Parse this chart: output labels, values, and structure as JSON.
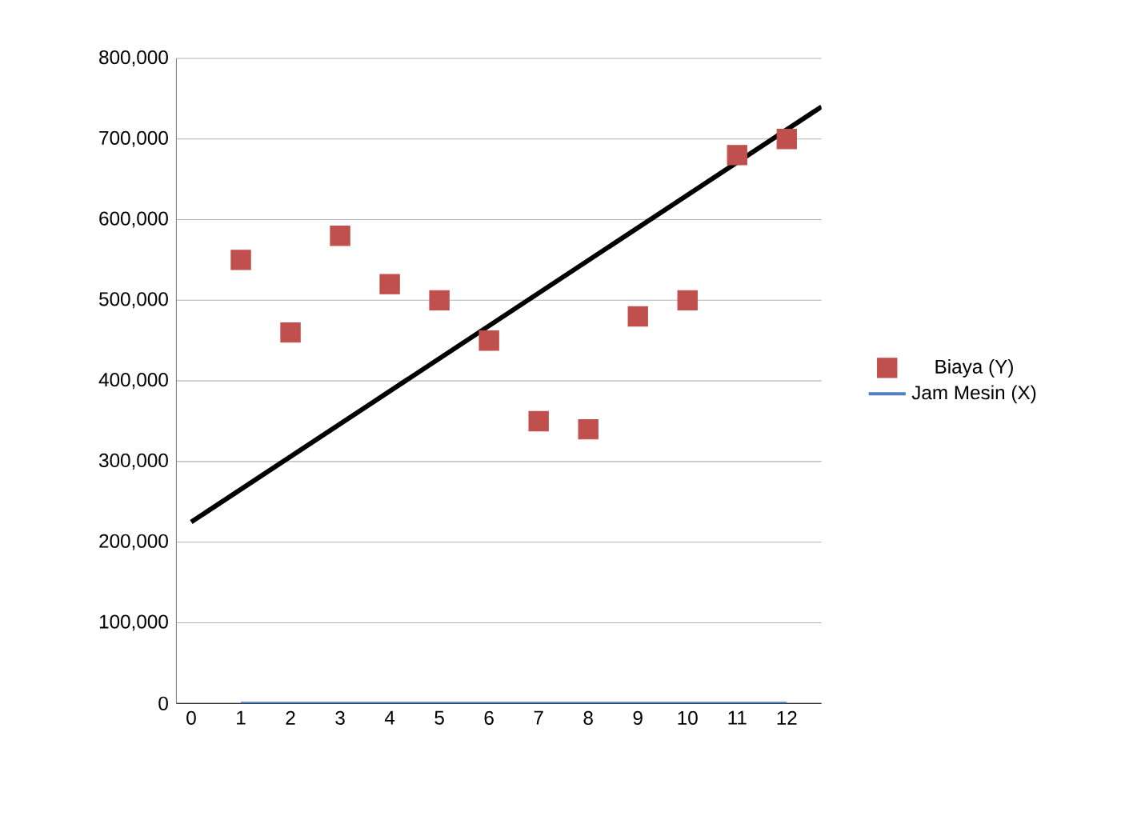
{
  "chart_data": {
    "type": "scatter",
    "x": [
      1,
      2,
      3,
      4,
      5,
      6,
      7,
      8,
      9,
      10,
      11,
      12
    ],
    "series": [
      {
        "name": "Biaya (Y)",
        "marker": "square",
        "color": "#c0504d",
        "values": [
          550000,
          460000,
          580000,
          520000,
          500000,
          450000,
          350000,
          340000,
          480000,
          500000,
          680000,
          700000
        ]
      },
      {
        "name": "Jam Mesin (X)",
        "type": "line",
        "marker": "none",
        "color": "#4f81bd",
        "values": [
          0,
          0,
          0,
          0,
          0,
          0,
          0,
          0,
          0,
          0,
          0,
          0
        ]
      },
      {
        "type": "line",
        "marker": "none",
        "color": "#000000",
        "x": [
          0,
          12.7
        ],
        "values": [
          225000,
          740000
        ]
      }
    ],
    "xlim": [
      -0.3,
      12.7
    ],
    "ylim": [
      0,
      800000
    ],
    "xticks": [
      0,
      1,
      2,
      3,
      4,
      5,
      6,
      7,
      8,
      9,
      10,
      11,
      12
    ],
    "yticks": [
      {
        "value": 0,
        "label": "0"
      },
      {
        "value": 100000,
        "label": "100,000"
      },
      {
        "value": 200000,
        "label": "200,000"
      },
      {
        "value": 300000,
        "label": "300,000"
      },
      {
        "value": 400000,
        "label": "400,000"
      },
      {
        "value": 500000,
        "label": "500,000"
      },
      {
        "value": 600000,
        "label": "600,000"
      },
      {
        "value": 700000,
        "label": "700,000"
      },
      {
        "value": 800000,
        "label": "800,000"
      }
    ],
    "grid": "y",
    "legend": "right"
  }
}
